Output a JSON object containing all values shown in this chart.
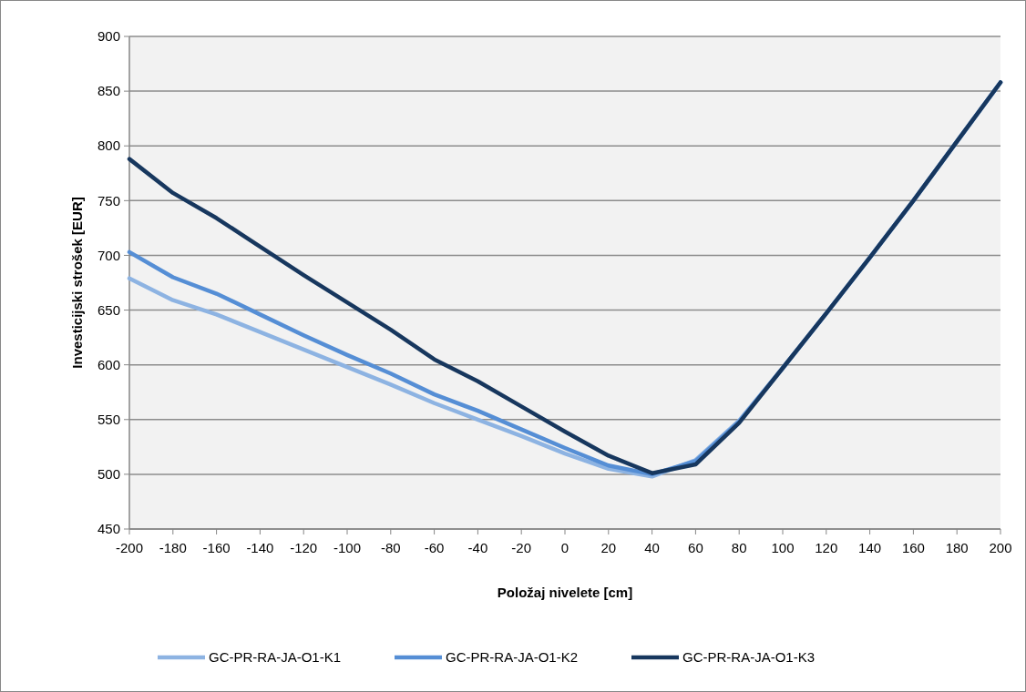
{
  "chart_data": {
    "type": "line",
    "xlabel": "Položaj nivelete [cm]",
    "ylabel": "Investicijski strošek [EUR]",
    "x": [
      -200,
      -180,
      -160,
      -140,
      -120,
      -100,
      -80,
      -60,
      -40,
      -20,
      0,
      20,
      40,
      60,
      80,
      100,
      120,
      140,
      160,
      180,
      200
    ],
    "series": [
      {
        "name": "GC-PR-RA-JA-O1-K1",
        "color": "#8db3e2",
        "values": [
          679,
          659,
          646,
          630,
          614,
          598,
          582,
          565,
          550,
          535,
          519,
          505,
          498,
          513,
          549,
          597,
          647,
          698,
          750,
          804,
          858
        ]
      },
      {
        "name": "GC-PR-RA-JA-O1-K2",
        "color": "#558ed5",
        "values": [
          703,
          680,
          665,
          646,
          627,
          609,
          592,
          573,
          558,
          541,
          524,
          508,
          500,
          512,
          548,
          597,
          647,
          698,
          750,
          804,
          858
        ]
      },
      {
        "name": "GC-PR-RA-JA-O1-K3",
        "color": "#17375e",
        "values": [
          788,
          757,
          734,
          708,
          682,
          657,
          632,
          605,
          585,
          562,
          539,
          517,
          501,
          509,
          547,
          597,
          647,
          698,
          750,
          804,
          858
        ]
      }
    ],
    "xlim": [
      -200,
      200
    ],
    "xticks": [
      -200,
      -180,
      -160,
      -140,
      -120,
      -100,
      -80,
      -60,
      -40,
      -20,
      0,
      20,
      40,
      60,
      80,
      100,
      120,
      140,
      160,
      180,
      200
    ],
    "ylim": [
      450,
      900
    ],
    "yticks": [
      450,
      500,
      550,
      600,
      650,
      700,
      750,
      800,
      850,
      900
    ],
    "grid": "y",
    "legend": "bottom",
    "marker": "none",
    "line_style": "solid"
  }
}
